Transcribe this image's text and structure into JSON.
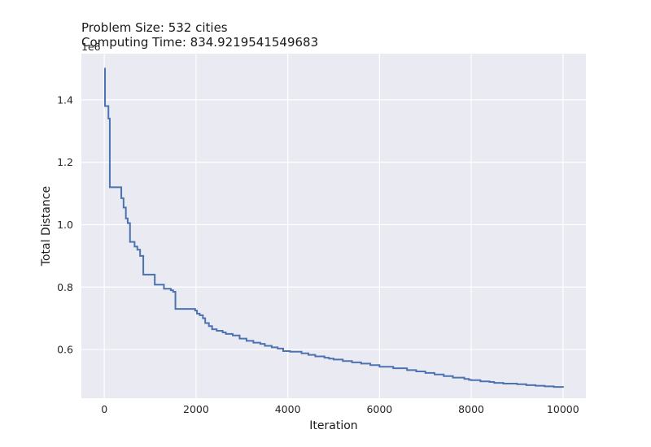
{
  "chart_data": {
    "type": "line",
    "title_lines": [
      "Problem Size: 532 cities",
      "Computing Time: 834.9219541549683"
    ],
    "xlabel": "Iteration",
    "ylabel": "Total Distance",
    "y_offset_label": "1e6",
    "xlim": [
      -500,
      10500
    ],
    "ylim": [
      0.444,
      1.548
    ],
    "x_ticks": [
      0,
      2000,
      4000,
      6000,
      8000,
      10000
    ],
    "x_tick_labels": [
      "0",
      "2000",
      "4000",
      "6000",
      "8000",
      "10000"
    ],
    "y_ticks": [
      0.6,
      0.8,
      1.0,
      1.2,
      1.4
    ],
    "y_tick_labels": [
      "0.6",
      "0.8",
      "1.0",
      "1.2",
      "1.4"
    ],
    "grid": true,
    "line_color": "#4c72b0",
    "background": "#eaeaf2",
    "series": [
      {
        "x": [
          0,
          15,
          70,
          90,
          105,
          120,
          200,
          250,
          320,
          370,
          420,
          470,
          510,
          560,
          620,
          660,
          720,
          780,
          850,
          950,
          1000,
          1100,
          1200,
          1300,
          1400,
          1450,
          1500,
          1550,
          1600,
          1700,
          1800,
          1900,
          1980,
          2020,
          2080,
          2150,
          2200,
          2280,
          2350,
          2450,
          2580,
          2650,
          2800,
          2950,
          3100,
          3250,
          3400,
          3500,
          3650,
          3780,
          3900,
          4050,
          4200,
          4300,
          4450,
          4600,
          4800,
          4900,
          5000,
          5200,
          5400,
          5600,
          5800,
          6000,
          6300,
          6600,
          6800,
          7000,
          7200,
          7400,
          7600,
          7850,
          7950,
          8000,
          8200,
          8400,
          8500,
          8700,
          9000,
          9200,
          9400,
          9600,
          9800,
          10000
        ],
        "y": [
          1.5,
          1.38,
          1.38,
          1.34,
          1.34,
          1.12,
          1.12,
          1.12,
          1.12,
          1.085,
          1.055,
          1.02,
          1.005,
          0.945,
          0.945,
          0.93,
          0.92,
          0.9,
          0.84,
          0.84,
          0.84,
          0.808,
          0.808,
          0.795,
          0.795,
          0.79,
          0.785,
          0.73,
          0.73,
          0.73,
          0.73,
          0.73,
          0.725,
          0.715,
          0.71,
          0.7,
          0.685,
          0.675,
          0.665,
          0.66,
          0.655,
          0.65,
          0.645,
          0.635,
          0.628,
          0.622,
          0.618,
          0.612,
          0.607,
          0.603,
          0.595,
          0.593,
          0.593,
          0.588,
          0.583,
          0.578,
          0.574,
          0.571,
          0.568,
          0.563,
          0.559,
          0.555,
          0.55,
          0.545,
          0.54,
          0.534,
          0.53,
          0.525,
          0.52,
          0.515,
          0.51,
          0.506,
          0.503,
          0.502,
          0.498,
          0.496,
          0.493,
          0.491,
          0.489,
          0.486,
          0.484,
          0.482,
          0.48,
          0.478
        ]
      }
    ]
  }
}
